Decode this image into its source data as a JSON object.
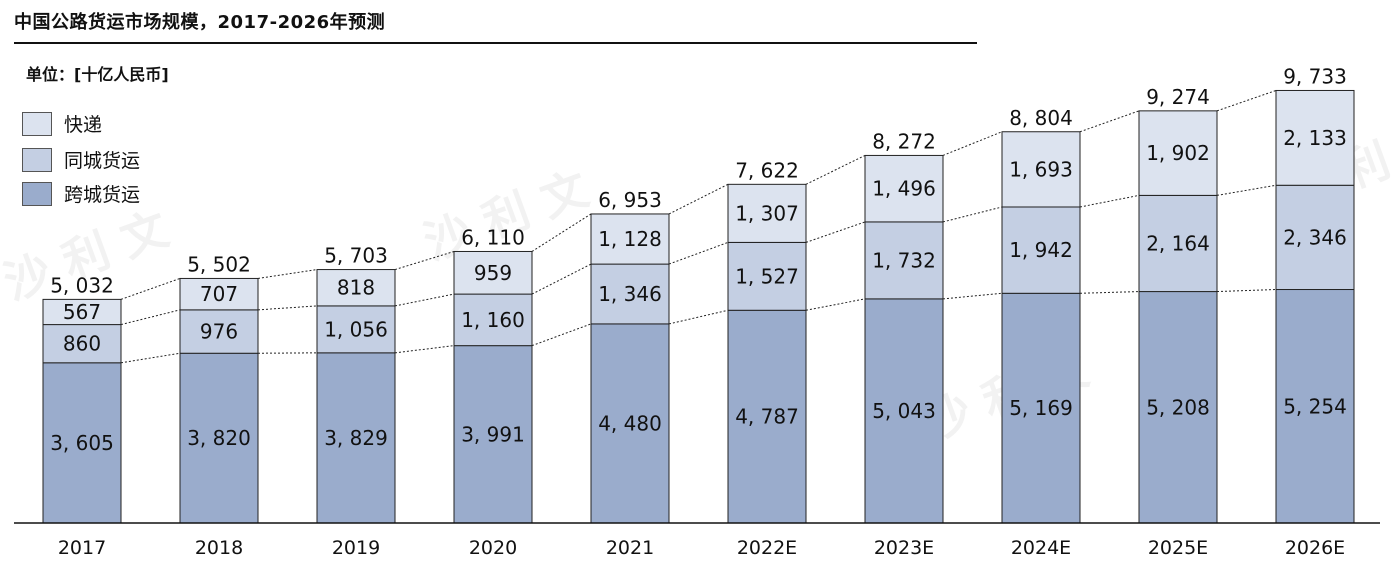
{
  "page": {
    "title": "中国公路货运市场规模，2017-2026年预测",
    "unit": "单位：[十亿人民币]"
  },
  "watermark": [
    "沙 利 文",
    "沙 利 文",
    "沙 利 文",
    "沙 利 文"
  ],
  "colors": {
    "express": "#dce3ef",
    "intracity": "#c4cfe3",
    "intercity": "#9aaccc",
    "bar_stroke": "#222222",
    "connector": "#222222"
  },
  "legend": [
    {
      "name": "快递",
      "color": "#dce3ef"
    },
    {
      "name": "同城货运",
      "color": "#c4cfe3"
    },
    {
      "name": "跨城货运",
      "color": "#9aaccc"
    }
  ],
  "chart_data": {
    "type": "bar",
    "stacked": true,
    "title": "中国公路货运市场规模，2017-2026年预测",
    "unit": "单位：[十亿人民币]",
    "categories": [
      "2017",
      "2018",
      "2019",
      "2020",
      "2021",
      "2022E",
      "2023E",
      "2024E",
      "2025E",
      "2026E"
    ],
    "series": [
      {
        "name": "跨城货运",
        "values": [
          3605,
          3820,
          3829,
          3991,
          4480,
          4787,
          5043,
          5169,
          5208,
          5254
        ],
        "labels": [
          "3, 605",
          "3, 820",
          "3, 829",
          "3, 991",
          "4, 480",
          "4, 787",
          "5, 043",
          "5, 169",
          "5, 208",
          "5, 254"
        ]
      },
      {
        "name": "同城货运",
        "values": [
          860,
          976,
          1056,
          1160,
          1346,
          1527,
          1732,
          1942,
          2164,
          2346
        ],
        "labels": [
          "860",
          "976",
          "1, 056",
          "1, 160",
          "1, 346",
          "1, 527",
          "1, 732",
          "1, 942",
          "2, 164",
          "2, 346"
        ]
      },
      {
        "name": "快递",
        "values": [
          567,
          707,
          818,
          959,
          1128,
          1307,
          1496,
          1693,
          1902,
          2133
        ],
        "labels": [
          "567",
          "707",
          "818",
          "959",
          "1, 128",
          "1, 307",
          "1, 496",
          "1, 693",
          "1, 902",
          "2, 133"
        ]
      }
    ],
    "totals": [
      5032,
      5502,
      5703,
      6110,
      6953,
      7622,
      8272,
      8804,
      9274,
      9733
    ],
    "total_labels": [
      "5, 032",
      "5, 502",
      "5, 703",
      "6, 110",
      "6, 953",
      "7, 622",
      "8, 272",
      "8, 804",
      "9, 274",
      "9, 733"
    ],
    "legend_position": "top-left",
    "grid": false
  }
}
